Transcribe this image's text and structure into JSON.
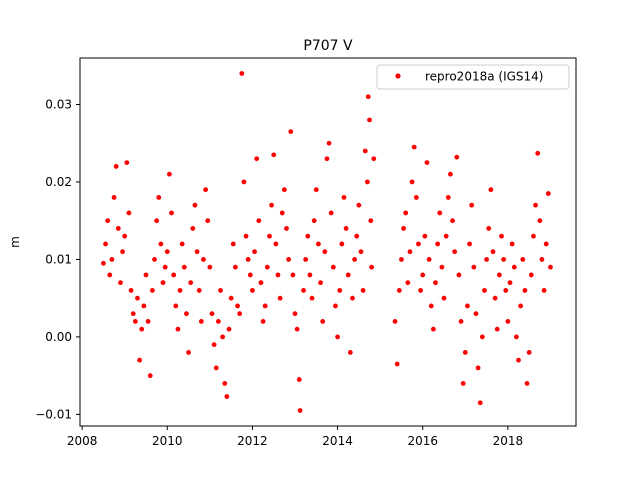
{
  "chart_data": {
    "type": "scatter",
    "title": "P707 V",
    "xlabel": "",
    "ylabel": "m",
    "xlim": [
      2007.95,
      2019.6
    ],
    "ylim": [
      -0.0115,
      0.036
    ],
    "xticks": [
      2008,
      2010,
      2012,
      2014,
      2016,
      2018
    ],
    "yticks": [
      -0.01,
      0.0,
      0.01,
      0.02,
      0.03
    ],
    "xtick_labels": [
      "2008",
      "2010",
      "2012",
      "2014",
      "2016",
      "2018"
    ],
    "ytick_labels": [
      "−0.01",
      "0.00",
      "0.01",
      "0.02",
      "0.03"
    ],
    "grid": false,
    "legend_position": "top-right",
    "series": [
      {
        "name": "repro2018a (IGS14)",
        "color": "#ff0000",
        "marker": "circle",
        "points": [
          [
            2008.5,
            0.0095
          ],
          [
            2008.55,
            0.012
          ],
          [
            2008.6,
            0.015
          ],
          [
            2008.65,
            0.008
          ],
          [
            2008.7,
            0.01
          ],
          [
            2008.75,
            0.018
          ],
          [
            2008.8,
            0.022
          ],
          [
            2008.85,
            0.014
          ],
          [
            2008.9,
            0.007
          ],
          [
            2008.95,
            0.011
          ],
          [
            2009.0,
            0.013
          ],
          [
            2009.05,
            0.0225
          ],
          [
            2009.1,
            0.016
          ],
          [
            2009.15,
            0.006
          ],
          [
            2009.2,
            0.003
          ],
          [
            2009.25,
            0.002
          ],
          [
            2009.3,
            0.005
          ],
          [
            2009.35,
            -0.003
          ],
          [
            2009.4,
            0.001
          ],
          [
            2009.45,
            0.004
          ],
          [
            2009.5,
            0.008
          ],
          [
            2009.55,
            0.002
          ],
          [
            2009.6,
            -0.005
          ],
          [
            2009.65,
            0.006
          ],
          [
            2009.7,
            0.01
          ],
          [
            2009.75,
            0.015
          ],
          [
            2009.8,
            0.018
          ],
          [
            2009.85,
            0.012
          ],
          [
            2009.9,
            0.007
          ],
          [
            2009.95,
            0.009
          ],
          [
            2010.0,
            0.011
          ],
          [
            2010.05,
            0.021
          ],
          [
            2010.1,
            0.016
          ],
          [
            2010.15,
            0.008
          ],
          [
            2010.2,
            0.004
          ],
          [
            2010.25,
            0.001
          ],
          [
            2010.3,
            0.006
          ],
          [
            2010.35,
            0.012
          ],
          [
            2010.4,
            0.009
          ],
          [
            2010.45,
            0.003
          ],
          [
            2010.5,
            -0.002
          ],
          [
            2010.55,
            0.007
          ],
          [
            2010.6,
            0.014
          ],
          [
            2010.65,
            0.017
          ],
          [
            2010.7,
            0.011
          ],
          [
            2010.75,
            0.006
          ],
          [
            2010.8,
            0.002
          ],
          [
            2010.85,
            0.01
          ],
          [
            2010.9,
            0.019
          ],
          [
            2010.95,
            0.015
          ],
          [
            2011.0,
            0.009
          ],
          [
            2011.05,
            0.003
          ],
          [
            2011.1,
            -0.001
          ],
          [
            2011.15,
            -0.004
          ],
          [
            2011.2,
            0.002
          ],
          [
            2011.25,
            0.006
          ],
          [
            2011.3,
            0.0
          ],
          [
            2011.35,
            -0.006
          ],
          [
            2011.4,
            -0.0077
          ],
          [
            2011.45,
            0.001
          ],
          [
            2011.5,
            0.005
          ],
          [
            2011.55,
            0.012
          ],
          [
            2011.6,
            0.009
          ],
          [
            2011.65,
            0.004
          ],
          [
            2011.7,
            0.003
          ],
          [
            2011.75,
            0.034
          ],
          [
            2011.8,
            0.02
          ],
          [
            2011.85,
            0.013
          ],
          [
            2011.9,
            0.01
          ],
          [
            2011.95,
            0.008
          ],
          [
            2012.0,
            0.006
          ],
          [
            2012.05,
            0.011
          ],
          [
            2012.1,
            0.023
          ],
          [
            2012.15,
            0.015
          ],
          [
            2012.2,
            0.007
          ],
          [
            2012.25,
            0.002
          ],
          [
            2012.3,
            0.004
          ],
          [
            2012.35,
            0.009
          ],
          [
            2012.4,
            0.013
          ],
          [
            2012.45,
            0.017
          ],
          [
            2012.5,
            0.0235
          ],
          [
            2012.55,
            0.012
          ],
          [
            2012.6,
            0.008
          ],
          [
            2012.65,
            0.005
          ],
          [
            2012.7,
            0.016
          ],
          [
            2012.75,
            0.019
          ],
          [
            2012.8,
            0.014
          ],
          [
            2012.85,
            0.01
          ],
          [
            2012.9,
            0.0265
          ],
          [
            2012.95,
            0.008
          ],
          [
            2013.0,
            0.003
          ],
          [
            2013.05,
            0.001
          ],
          [
            2013.1,
            -0.0055
          ],
          [
            2013.12,
            -0.0095
          ],
          [
            2013.2,
            0.006
          ],
          [
            2013.25,
            0.01
          ],
          [
            2013.3,
            0.013
          ],
          [
            2013.35,
            0.008
          ],
          [
            2013.4,
            0.005
          ],
          [
            2013.45,
            0.015
          ],
          [
            2013.5,
            0.019
          ],
          [
            2013.55,
            0.012
          ],
          [
            2013.6,
            0.007
          ],
          [
            2013.65,
            0.002
          ],
          [
            2013.7,
            0.011
          ],
          [
            2013.75,
            0.023
          ],
          [
            2013.8,
            0.025
          ],
          [
            2013.85,
            0.016
          ],
          [
            2013.9,
            0.009
          ],
          [
            2013.95,
            0.004
          ],
          [
            2014.0,
            0.0
          ],
          [
            2014.05,
            0.006
          ],
          [
            2014.1,
            0.012
          ],
          [
            2014.15,
            0.018
          ],
          [
            2014.2,
            0.014
          ],
          [
            2014.25,
            0.008
          ],
          [
            2014.3,
            -0.002
          ],
          [
            2014.35,
            0.005
          ],
          [
            2014.4,
            0.01
          ],
          [
            2014.45,
            0.013
          ],
          [
            2014.5,
            0.017
          ],
          [
            2014.55,
            0.011
          ],
          [
            2014.6,
            0.006
          ],
          [
            2014.65,
            0.024
          ],
          [
            2014.7,
            0.02
          ],
          [
            2014.72,
            0.031
          ],
          [
            2014.75,
            0.028
          ],
          [
            2014.78,
            0.015
          ],
          [
            2014.8,
            0.009
          ],
          [
            2014.85,
            0.023
          ],
          [
            2015.35,
            0.002
          ],
          [
            2015.4,
            -0.0035
          ],
          [
            2015.45,
            0.006
          ],
          [
            2015.5,
            0.01
          ],
          [
            2015.55,
            0.014
          ],
          [
            2015.6,
            0.016
          ],
          [
            2015.65,
            0.007
          ],
          [
            2015.7,
            0.011
          ],
          [
            2015.75,
            0.02
          ],
          [
            2015.8,
            0.0245
          ],
          [
            2015.85,
            0.018
          ],
          [
            2015.9,
            0.012
          ],
          [
            2015.95,
            0.006
          ],
          [
            2016.0,
            0.008
          ],
          [
            2016.05,
            0.013
          ],
          [
            2016.1,
            0.0225
          ],
          [
            2016.15,
            0.01
          ],
          [
            2016.2,
            0.004
          ],
          [
            2016.25,
            0.001
          ],
          [
            2016.3,
            0.007
          ],
          [
            2016.35,
            0.012
          ],
          [
            2016.4,
            0.016
          ],
          [
            2016.45,
            0.009
          ],
          [
            2016.5,
            0.005
          ],
          [
            2016.55,
            0.013
          ],
          [
            2016.6,
            0.018
          ],
          [
            2016.65,
            0.021
          ],
          [
            2016.7,
            0.015
          ],
          [
            2016.75,
            0.011
          ],
          [
            2016.8,
            0.0232
          ],
          [
            2016.85,
            0.008
          ],
          [
            2016.9,
            0.002
          ],
          [
            2016.95,
            -0.006
          ],
          [
            2017.0,
            -0.002
          ],
          [
            2017.05,
            0.004
          ],
          [
            2017.1,
            0.012
          ],
          [
            2017.15,
            0.017
          ],
          [
            2017.2,
            0.009
          ],
          [
            2017.25,
            0.003
          ],
          [
            2017.3,
            -0.004
          ],
          [
            2017.35,
            -0.0085
          ],
          [
            2017.4,
            0.0
          ],
          [
            2017.45,
            0.006
          ],
          [
            2017.5,
            0.01
          ],
          [
            2017.55,
            0.014
          ],
          [
            2017.6,
            0.019
          ],
          [
            2017.65,
            0.011
          ],
          [
            2017.7,
            0.005
          ],
          [
            2017.75,
            0.001
          ],
          [
            2017.8,
            0.008
          ],
          [
            2017.85,
            0.013
          ],
          [
            2017.9,
            0.01
          ],
          [
            2017.95,
            0.006
          ],
          [
            2018.0,
            0.002
          ],
          [
            2018.05,
            0.007
          ],
          [
            2018.1,
            0.012
          ],
          [
            2018.15,
            0.009
          ],
          [
            2018.2,
            0.0
          ],
          [
            2018.25,
            -0.003
          ],
          [
            2018.3,
            0.004
          ],
          [
            2018.35,
            0.01
          ],
          [
            2018.4,
            0.006
          ],
          [
            2018.45,
            -0.006
          ],
          [
            2018.5,
            -0.002
          ],
          [
            2018.55,
            0.008
          ],
          [
            2018.6,
            0.013
          ],
          [
            2018.65,
            0.017
          ],
          [
            2018.7,
            0.0237
          ],
          [
            2018.75,
            0.015
          ],
          [
            2018.8,
            0.01
          ],
          [
            2018.85,
            0.006
          ],
          [
            2018.9,
            0.012
          ],
          [
            2018.95,
            0.0185
          ],
          [
            2019.0,
            0.009
          ]
        ]
      }
    ]
  }
}
